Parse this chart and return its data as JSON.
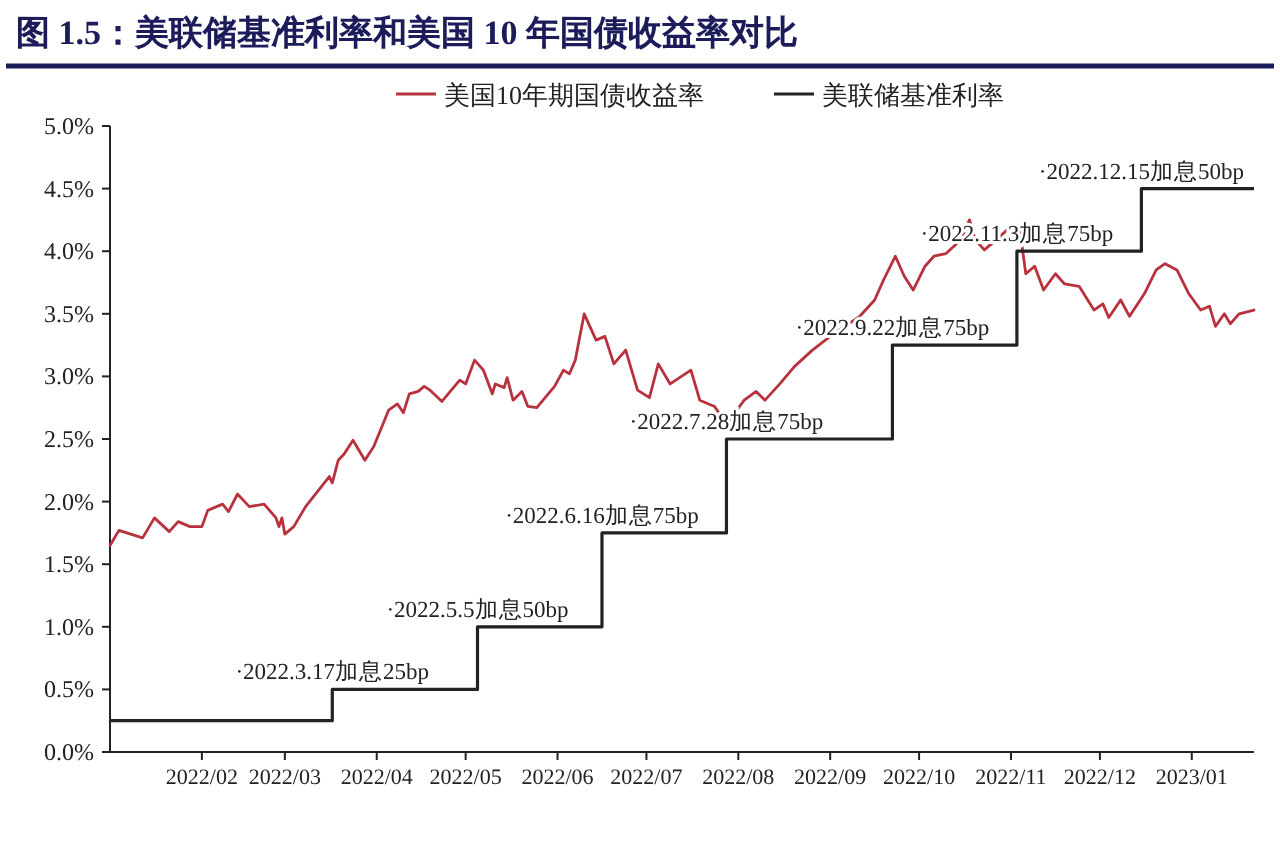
{
  "chart_data": {
    "type": "line",
    "title": "图 1.5：美联储基准利率和美国 10 年国债收益率对比",
    "legend": "top",
    "xlim": [
      "2022-01-01",
      "2023-01-22"
    ],
    "xticks": [
      {
        "value": "2022-02-01",
        "label": "2022/02"
      },
      {
        "value": "2022-03-01",
        "label": "2022/03"
      },
      {
        "value": "2022-04-01",
        "label": "2022/04"
      },
      {
        "value": "2022-05-01",
        "label": "2022/05"
      },
      {
        "value": "2022-06-01",
        "label": "2022/06"
      },
      {
        "value": "2022-07-01",
        "label": "2022/07"
      },
      {
        "value": "2022-08-01",
        "label": "2022/08"
      },
      {
        "value": "2022-09-01",
        "label": "2022/09"
      },
      {
        "value": "2022-10-01",
        "label": "2022/10"
      },
      {
        "value": "2022-11-01",
        "label": "2022/11"
      },
      {
        "value": "2022-12-01",
        "label": "2022/12"
      },
      {
        "value": "2023-01-01",
        "label": "2023/01"
      }
    ],
    "ylim": [
      0,
      5
    ],
    "yticks": [
      {
        "value": 0,
        "label": "0.0%"
      },
      {
        "value": 0.5,
        "label": "0.5%"
      },
      {
        "value": 1,
        "label": "1.0%"
      },
      {
        "value": 1.5,
        "label": "1.5%"
      },
      {
        "value": 2,
        "label": "2.0%"
      },
      {
        "value": 2.5,
        "label": "2.5%"
      },
      {
        "value": 3,
        "label": "3.0%"
      },
      {
        "value": 3.5,
        "label": "3.5%"
      },
      {
        "value": 4,
        "label": "4.0%"
      },
      {
        "value": 4.5,
        "label": "4.5%"
      },
      {
        "value": 5,
        "label": "5.0%"
      }
    ],
    "series": [
      {
        "name": "美国10年期国债收益率",
        "type": "line",
        "color": "#b8323e",
        "x": [
          "2022-01-01",
          "2022-01-04",
          "2022-01-12",
          "2022-01-16",
          "2022-01-21",
          "2022-01-24",
          "2022-01-28",
          "2022-02-01",
          "2022-02-03",
          "2022-02-08",
          "2022-02-10",
          "2022-02-13",
          "2022-02-17",
          "2022-02-22",
          "2022-02-26",
          "2022-02-27",
          "2022-02-28",
          "2022-03-01",
          "2022-03-04",
          "2022-03-08",
          "2022-03-14",
          "2022-03-16",
          "2022-03-17",
          "2022-03-19",
          "2022-03-21",
          "2022-03-24",
          "2022-03-28",
          "2022-03-31",
          "2022-04-05",
          "2022-04-08",
          "2022-04-10",
          "2022-04-12",
          "2022-04-15",
          "2022-04-17",
          "2022-04-19",
          "2022-04-23",
          "2022-04-29",
          "2022-05-01",
          "2022-05-04",
          "2022-05-07",
          "2022-05-10",
          "2022-05-11",
          "2022-05-14",
          "2022-05-15",
          "2022-05-17",
          "2022-05-20",
          "2022-05-22",
          "2022-05-25",
          "2022-05-31",
          "2022-06-03",
          "2022-06-05",
          "2022-06-07",
          "2022-06-10",
          "2022-06-14",
          "2022-06-17",
          "2022-06-20",
          "2022-06-24",
          "2022-06-28",
          "2022-07-02",
          "2022-07-05",
          "2022-07-09",
          "2022-07-16",
          "2022-07-19",
          "2022-07-24",
          "2022-07-28",
          "2022-08-03",
          "2022-08-07",
          "2022-08-10",
          "2022-08-15",
          "2022-08-20",
          "2022-08-26",
          "2022-09-01",
          "2022-09-04",
          "2022-09-11",
          "2022-09-16",
          "2022-09-19",
          "2022-09-23",
          "2022-09-26",
          "2022-09-29",
          "2022-10-03",
          "2022-10-06",
          "2022-10-10",
          "2022-10-15",
          "2022-10-18",
          "2022-10-20",
          "2022-10-23",
          "2022-10-27",
          "2022-11-01",
          "2022-11-04",
          "2022-11-06",
          "2022-11-09",
          "2022-11-12",
          "2022-11-16",
          "2022-11-19",
          "2022-11-24",
          "2022-11-29",
          "2022-12-02",
          "2022-12-04",
          "2022-12-08",
          "2022-12-11",
          "2022-12-16",
          "2022-12-20",
          "2022-12-23",
          "2022-12-27",
          "2022-12-31",
          "2023-01-04",
          "2023-01-07",
          "2023-01-09",
          "2023-01-12",
          "2023-01-14",
          "2023-01-17",
          "2023-01-22"
        ],
        "values": [
          1.65,
          1.77,
          1.71,
          1.87,
          1.76,
          1.84,
          1.8,
          1.8,
          1.93,
          1.98,
          1.92,
          2.06,
          1.96,
          1.98,
          1.87,
          1.8,
          1.87,
          1.74,
          1.8,
          1.96,
          2.14,
          2.2,
          2.15,
          2.33,
          2.38,
          2.49,
          2.33,
          2.44,
          2.73,
          2.78,
          2.71,
          2.86,
          2.88,
          2.92,
          2.89,
          2.8,
          2.97,
          2.94,
          3.13,
          3.05,
          2.86,
          2.94,
          2.91,
          2.99,
          2.81,
          2.88,
          2.76,
          2.75,
          2.92,
          3.05,
          3.02,
          3.13,
          3.5,
          3.29,
          3.32,
          3.1,
          3.21,
          2.89,
          2.83,
          3.1,
          2.94,
          3.05,
          2.81,
          2.76,
          2.62,
          2.81,
          2.88,
          2.81,
          2.94,
          3.08,
          3.21,
          3.32,
          3.37,
          3.48,
          3.61,
          3.77,
          3.96,
          3.8,
          3.69,
          3.88,
          3.96,
          3.98,
          4.09,
          4.25,
          4.09,
          4.01,
          4.09,
          4.2,
          4.17,
          3.82,
          3.88,
          3.69,
          3.82,
          3.74,
          3.72,
          3.53,
          3.58,
          3.47,
          3.61,
          3.48,
          3.66,
          3.85,
          3.9,
          3.85,
          3.66,
          3.53,
          3.56,
          3.4,
          3.5,
          3.42,
          3.5,
          3.53
        ]
      },
      {
        "name": "美联储基准利率",
        "type": "step",
        "color": "#222222",
        "x": [
          "2022-01-01",
          "2022-03-17",
          "2022-05-05",
          "2022-06-16",
          "2022-07-28",
          "2022-09-22",
          "2022-11-03",
          "2022-12-15",
          "2023-01-22"
        ],
        "values": [
          0.25,
          0.5,
          1,
          1.75,
          2.5,
          3.25,
          4,
          4.5,
          4.5
        ]
      }
    ],
    "annotations": [
      {
        "text": "·2022.3.17加息25bp",
        "x": "2022-03-17",
        "y": 0.5
      },
      {
        "text": "·2022.5.5加息50bp",
        "x": "2022-05-05",
        "y": 1
      },
      {
        "text": "·2022.6.16加息75bp",
        "x": "2022-06-16",
        "y": 1.75
      },
      {
        "text": "·2022.7.28加息75bp",
        "x": "2022-07-28",
        "y": 2.5
      },
      {
        "text": "·2022.9.22加息75bp",
        "x": "2022-09-22",
        "y": 3.25
      },
      {
        "text": "·2022.11.3加息75bp",
        "x": "2022-11-03",
        "y": 4
      },
      {
        "text": "·2022.12.15加息50bp",
        "x": "2022-12-15",
        "y": 4.5
      }
    ]
  }
}
